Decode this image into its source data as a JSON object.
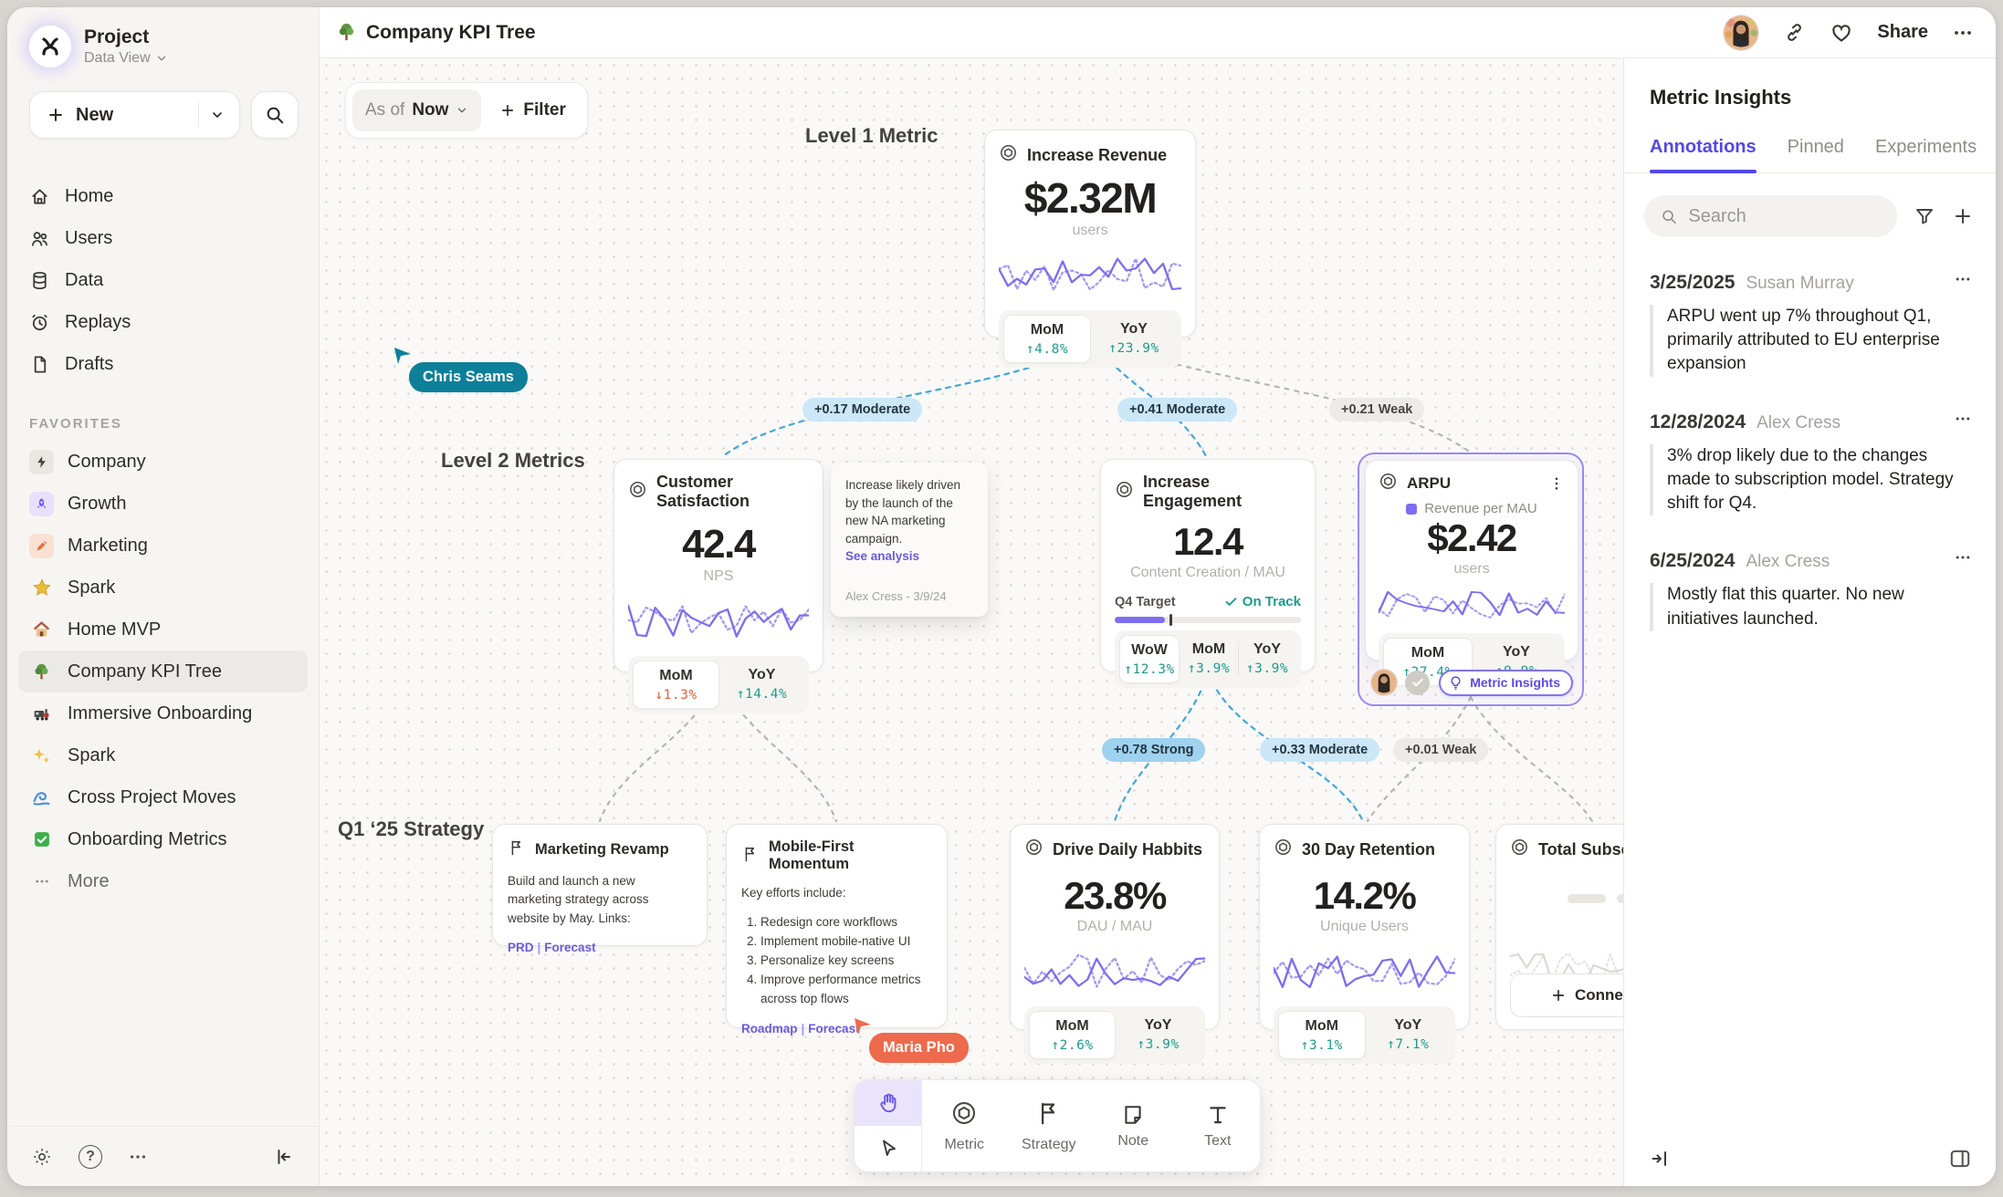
{
  "colors": {
    "accent_purple": "#7e6ef0",
    "tab_purple": "#5348e8",
    "stat_up": "#1d9c8b",
    "stat_down": "#e2603f",
    "edge_blue": "#41a7da"
  },
  "sidebar": {
    "project": {
      "name": "Project",
      "view": "Data View"
    },
    "new_button": "New",
    "nav": [
      {
        "label": "Home"
      },
      {
        "label": "Users"
      },
      {
        "label": "Data"
      },
      {
        "label": "Replays"
      },
      {
        "label": "Drafts"
      }
    ],
    "favorites_label": "FAVORITES",
    "favorites": [
      {
        "label": "Company"
      },
      {
        "label": "Growth"
      },
      {
        "label": "Marketing"
      },
      {
        "label": "Spark"
      },
      {
        "label": "Home MVP"
      },
      {
        "label": "Company KPI Tree"
      },
      {
        "label": "Immersive Onboarding"
      },
      {
        "label": "Spark"
      },
      {
        "label": "Cross Project Moves"
      },
      {
        "label": "Onboarding Metrics"
      }
    ],
    "more": "More"
  },
  "topbar": {
    "title": "Company KPI Tree",
    "share": "Share"
  },
  "canvas": {
    "filter": {
      "as_of": "As of",
      "period": "Now",
      "filter": "Filter"
    },
    "labels": {
      "level1": "Level 1 Metric",
      "level2": "Level 2 Metrics",
      "strategy": "Q1 ‘25 Strategy"
    },
    "edges": {
      "e1": "+0.17 Moderate",
      "e2": "+0.41 Moderate",
      "e3": "+0.21 Weak",
      "e4": "+0.78 Strong",
      "e5": "+0.33 Moderate",
      "e6": "+0.01 Weak"
    },
    "cards": {
      "revenue": {
        "title": "Increase Revenue",
        "value": "$2.32M",
        "sub": "users",
        "stats": [
          {
            "label": "MoM",
            "value": "↑4.8%"
          },
          {
            "label": "YoY",
            "value": "↑23.9%"
          }
        ]
      },
      "customer": {
        "title": "Customer Satisfaction",
        "value": "42.4",
        "sub": "NPS",
        "stats": [
          {
            "label": "MoM",
            "value": "↓1.3%"
          },
          {
            "label": "YoY",
            "value": "↑14.4%"
          }
        ]
      },
      "engagement": {
        "title": "Increase Engagement",
        "value": "12.4",
        "sub": "Content Creation / MAU",
        "target_label": "Q4 Target",
        "on_track": "On Track",
        "stats": [
          {
            "label": "WoW",
            "value": "↑12.3%"
          },
          {
            "label": "MoM",
            "value": "↑3.9%"
          },
          {
            "label": "YoY",
            "value": "↑3.9%"
          }
        ]
      },
      "arpu": {
        "title": "ARPU",
        "legend": "Revenue per MAU",
        "value": "$2.42",
        "sub": "users",
        "stats": [
          {
            "label": "MoM",
            "value": "↑27.4%"
          },
          {
            "label": "YoY",
            "value": "↑9.9%"
          }
        ],
        "insights_button": "Metric Insights"
      },
      "note": {
        "text": "Increase likely driven by the launch of the new NA marketing campaign.",
        "link": "See analysis",
        "author": "Alex Cress - 3/9/24"
      },
      "marketing_revamp": {
        "title": "Marketing Revamp",
        "body": "Build and launch a new marketing strategy across website by May. Links:",
        "links": {
          "a": "PRD",
          "sep": "|",
          "b": "Forecast"
        }
      },
      "mobile_first": {
        "title": "Mobile-First Momentum",
        "intro": "Key efforts include:",
        "items": [
          "Redesign core workflows",
          "Implement mobile-native UI",
          "Personalize key screens",
          "Improve performance metrics across top flows"
        ],
        "links": {
          "a": "Roadmap",
          "sep": "|",
          "b": "Forecast"
        }
      },
      "daily_habits": {
        "title": "Drive Daily Habbits",
        "value": "23.8%",
        "sub": "DAU / MAU",
        "stats": [
          {
            "label": "MoM",
            "value": "↑2.6%"
          },
          {
            "label": "YoY",
            "value": "↑3.9%"
          }
        ]
      },
      "retention": {
        "title": "30 Day Retention",
        "value": "14.2%",
        "sub": "Unique Users",
        "stats": [
          {
            "label": "MoM",
            "value": "↑3.1%"
          },
          {
            "label": "YoY",
            "value": "↑7.1%"
          }
        ]
      },
      "total_subs": {
        "title": "Total Subscriptions",
        "connect": "Connect"
      }
    },
    "cursors": [
      {
        "name": "Chris Seams",
        "color": "#0e7f99"
      },
      {
        "name": "Maria Pho",
        "color": "#ee6a4c"
      }
    ],
    "toolbar": {
      "tools": [
        {
          "label": "Metric"
        },
        {
          "label": "Strategy"
        },
        {
          "label": "Note"
        },
        {
          "label": "Text"
        }
      ]
    }
  },
  "insights_panel": {
    "title": "Metric Insights",
    "tabs": [
      {
        "label": "Annotations"
      },
      {
        "label": "Pinned"
      },
      {
        "label": "Experiments"
      }
    ],
    "search_placeholder": "Search",
    "annotations": [
      {
        "date": "3/25/2025",
        "author": "Susan Murray",
        "text": "ARPU went up 7% throughout Q1, primarily attributed to EU enterprise expansion"
      },
      {
        "date": "12/28/2024",
        "author": "Alex Cress",
        "text": "3% drop likely due to the changes made to subscription model. Strategy shift for Q4."
      },
      {
        "date": "6/25/2024",
        "author": "Alex Cress",
        "text": "Mostly flat this quarter. No new initiatives launched."
      }
    ]
  }
}
